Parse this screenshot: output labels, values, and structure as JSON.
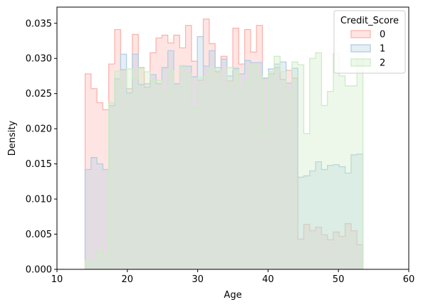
{
  "chart_data": {
    "type": "histogram-step",
    "xlabel": "Age",
    "ylabel": "Density",
    "xlim": [
      10,
      60
    ],
    "ylim": [
      0,
      0.0373
    ],
    "x_ticks": [
      "10",
      "20",
      "30",
      "40",
      "50",
      "60"
    ],
    "y_ticks": [
      "0.000",
      "0.005",
      "0.010",
      "0.015",
      "0.020",
      "0.025",
      "0.030",
      "0.035"
    ],
    "bin_start": 14,
    "bin_width": 0.84,
    "grid": false,
    "legend": {
      "title": "Credit_Score",
      "placement": "top-right",
      "entries": [
        "0",
        "1",
        "2"
      ]
    },
    "series": [
      {
        "name": "0",
        "color": "#fbb4ae",
        "values": [
          0.0278,
          0.0257,
          0.0237,
          0.0227,
          0.0292,
          0.0341,
          0.0284,
          0.0257,
          0.0334,
          0.0287,
          0.0259,
          0.0308,
          0.0329,
          0.0333,
          0.0322,
          0.0333,
          0.0315,
          0.0347,
          0.0296,
          0.0269,
          0.0356,
          0.0321,
          0.0281,
          0.0303,
          0.0268,
          0.0343,
          0.0292,
          0.0341,
          0.0309,
          0.0347,
          0.0272,
          0.0278,
          0.0287,
          0.027,
          0.0283,
          0.0272,
          0.0043,
          0.0064,
          0.0055,
          0.006,
          0.0049,
          0.0042,
          0.0053,
          0.0047,
          0.0065,
          0.0055,
          0.0035
        ]
      },
      {
        "name": "1",
        "color": "#b3cde3",
        "values": [
          0.0142,
          0.0159,
          0.015,
          0.0142,
          0.0233,
          0.0271,
          0.0306,
          0.0251,
          0.0306,
          0.0263,
          0.0264,
          0.0277,
          0.0264,
          0.0287,
          0.0311,
          0.0264,
          0.0289,
          0.0289,
          0.0274,
          0.0331,
          0.0289,
          0.0311,
          0.0287,
          0.0299,
          0.0275,
          0.0286,
          0.0278,
          0.0297,
          0.0294,
          0.0294,
          0.0272,
          0.0285,
          0.0292,
          0.0295,
          0.0265,
          0.0286,
          0.0131,
          0.0133,
          0.014,
          0.0153,
          0.0142,
          0.0148,
          0.0149,
          0.0146,
          0.0137,
          0.0163,
          0.0164
        ]
      },
      {
        "name": "2",
        "color": "#ccebc5",
        "values": [
          0.0013,
          0.0014,
          0.0027,
          0.0014,
          0.0237,
          0.0282,
          0.0258,
          0.0285,
          0.0271,
          0.0286,
          0.0281,
          0.0269,
          0.0269,
          0.0251,
          0.0283,
          0.0258,
          0.029,
          0.0279,
          0.0229,
          0.0273,
          0.0274,
          0.0286,
          0.0283,
          0.0254,
          0.0287,
          0.0284,
          0.0258,
          0.0269,
          0.0291,
          0.0275,
          0.0197,
          0.0281,
          0.0303,
          0.0281,
          0.0252,
          0.0295,
          0.0291,
          0.0193,
          0.03,
          0.0308,
          0.0233,
          0.0253,
          0.0307,
          0.0275,
          0.0261,
          0.0261,
          0.0307
        ]
      }
    ]
  }
}
